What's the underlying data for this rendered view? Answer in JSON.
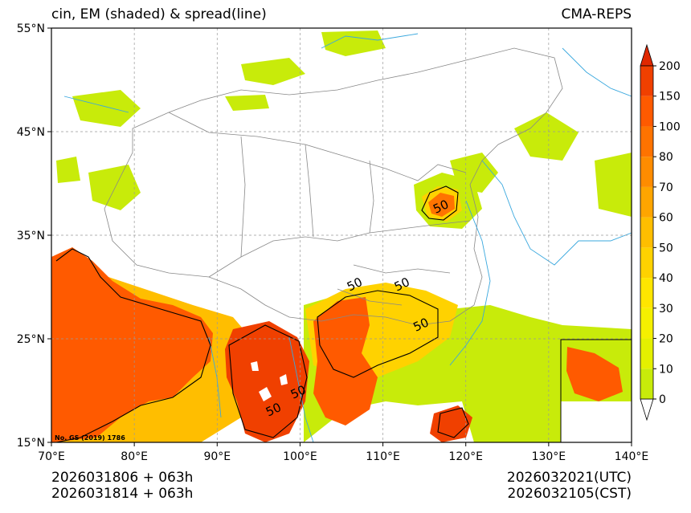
{
  "title": {
    "left": "cin, EM (shaded) & spread(line)",
    "right": "CMA-REPS"
  },
  "map": {
    "lon_min": 70,
    "lon_max": 140,
    "lat_min": 15,
    "lat_max": 55,
    "lon_ticks": [
      {
        "value": 70,
        "label": "70°E"
      },
      {
        "value": 80,
        "label": "80°E"
      },
      {
        "value": 90,
        "label": "90°E"
      },
      {
        "value": 100,
        "label": "100°E"
      },
      {
        "value": 110,
        "label": "110°E"
      },
      {
        "value": 120,
        "label": "120°E"
      },
      {
        "value": 130,
        "label": "130°E"
      },
      {
        "value": 140,
        "label": "140°E"
      }
    ],
    "lat_ticks": [
      {
        "value": 15,
        "label": "15°N"
      },
      {
        "value": 25,
        "label": "25°N"
      },
      {
        "value": 35,
        "label": "35°N"
      },
      {
        "value": 45,
        "label": "45°N"
      },
      {
        "value": 55,
        "label": "55°N"
      }
    ],
    "contour_labels": [
      {
        "text": "50",
        "lon": 117.2,
        "lat": 37.4
      },
      {
        "text": "50",
        "lon": 106.8,
        "lat": 29.9
      },
      {
        "text": "50",
        "lon": 112.5,
        "lat": 29.9
      },
      {
        "text": "50",
        "lon": 114.8,
        "lat": 26.0
      },
      {
        "text": "50",
        "lon": 100.0,
        "lat": 19.5
      },
      {
        "text": "50",
        "lon": 97.0,
        "lat": 17.8
      }
    ],
    "map_credit": "No. GS (2019) 1786",
    "colors": {
      "water": "#3aa8de",
      "border": "#888888",
      "contour": "#000000",
      "gridline": "#999999"
    }
  },
  "colorbar": {
    "ticks": [
      "0",
      "10",
      "20",
      "30",
      "40",
      "50",
      "60",
      "70",
      "80",
      "100",
      "150",
      "200"
    ],
    "colors": [
      "#c8eb0a",
      "#e4f000",
      "#f5f000",
      "#ffe600",
      "#ffd200",
      "#ffbe00",
      "#ffa500",
      "#ff8c00",
      "#ff7300",
      "#ff5a00",
      "#f04000"
    ],
    "top_arrow_color": "#e02800",
    "bottom_arrow_color": "#ffffff"
  },
  "footer": {
    "init_utc": "2026031806  +  063h",
    "init_cst": "2026031814  +  063h",
    "valid_utc": "2026032021(UTC)",
    "valid_cst": "2026032105(CST)"
  }
}
